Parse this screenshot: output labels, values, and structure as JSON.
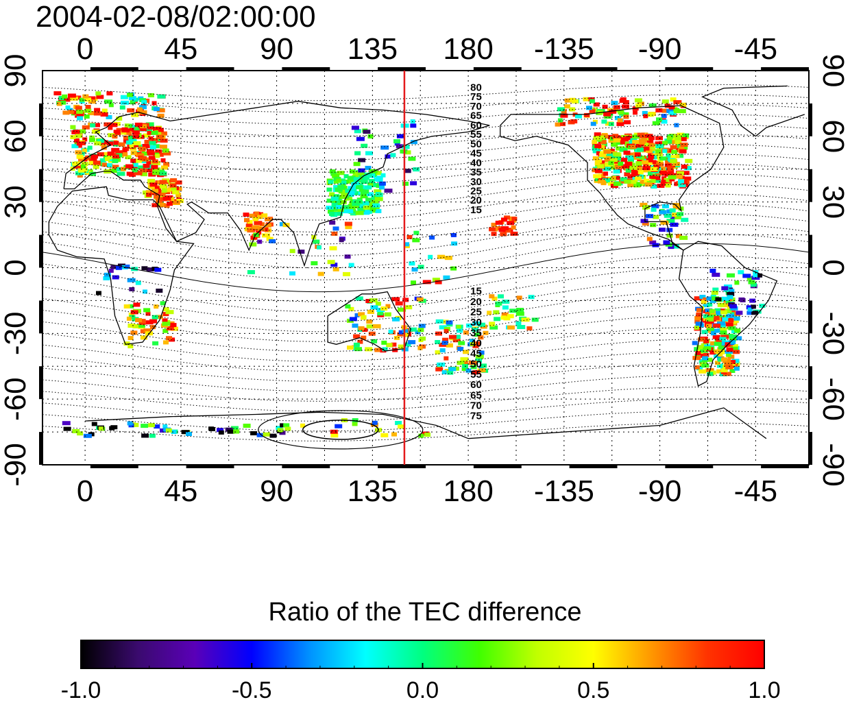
{
  "title": "2004-02-08/02:00:00",
  "map": {
    "lon_ticks_top": [
      "0",
      "45",
      "90",
      "135",
      "180",
      "-135",
      "-90",
      "-45"
    ],
    "lon_ticks_bottom": [
      "0",
      "45",
      "90",
      "135",
      "180",
      "-135",
      "-90",
      "-45"
    ],
    "lat_ticks_left": [
      "90",
      "60",
      "30",
      "0",
      "-30",
      "-60",
      "-90"
    ],
    "lat_ticks_right": [
      "90",
      "60",
      "30",
      "0",
      "-30",
      "-60",
      "-90"
    ],
    "lon_range": [
      -20,
      340
    ],
    "lat_range": [
      -90,
      90
    ],
    "marker_longitude": 150,
    "marker_color": "#e41a1c",
    "magnetic_lat_labels_north": [
      "80",
      "75",
      "70",
      "65",
      "60",
      "55",
      "50",
      "45",
      "40",
      "35",
      "30",
      "25",
      "20",
      "15"
    ],
    "magnetic_lat_labels_south": [
      "15",
      "20",
      "25",
      "30",
      "35",
      "40",
      "45",
      "50",
      "55",
      "60",
      "65",
      "70",
      "75"
    ]
  },
  "colorbar": {
    "title": "Ratio of the TEC difference",
    "tick_labels": [
      "-1.0",
      "-0.5",
      "0.0",
      "0.5",
      "1.0"
    ],
    "range": [
      -1.0,
      1.0
    ],
    "colors": [
      "#000000",
      "#3a0a6e",
      "#5a00b8",
      "#0000ff",
      "#0090ff",
      "#00ffff",
      "#00ff80",
      "#40ff00",
      "#c0ff00",
      "#ffff00",
      "#ff9900",
      "#ff3300",
      "#ff0000"
    ]
  }
}
